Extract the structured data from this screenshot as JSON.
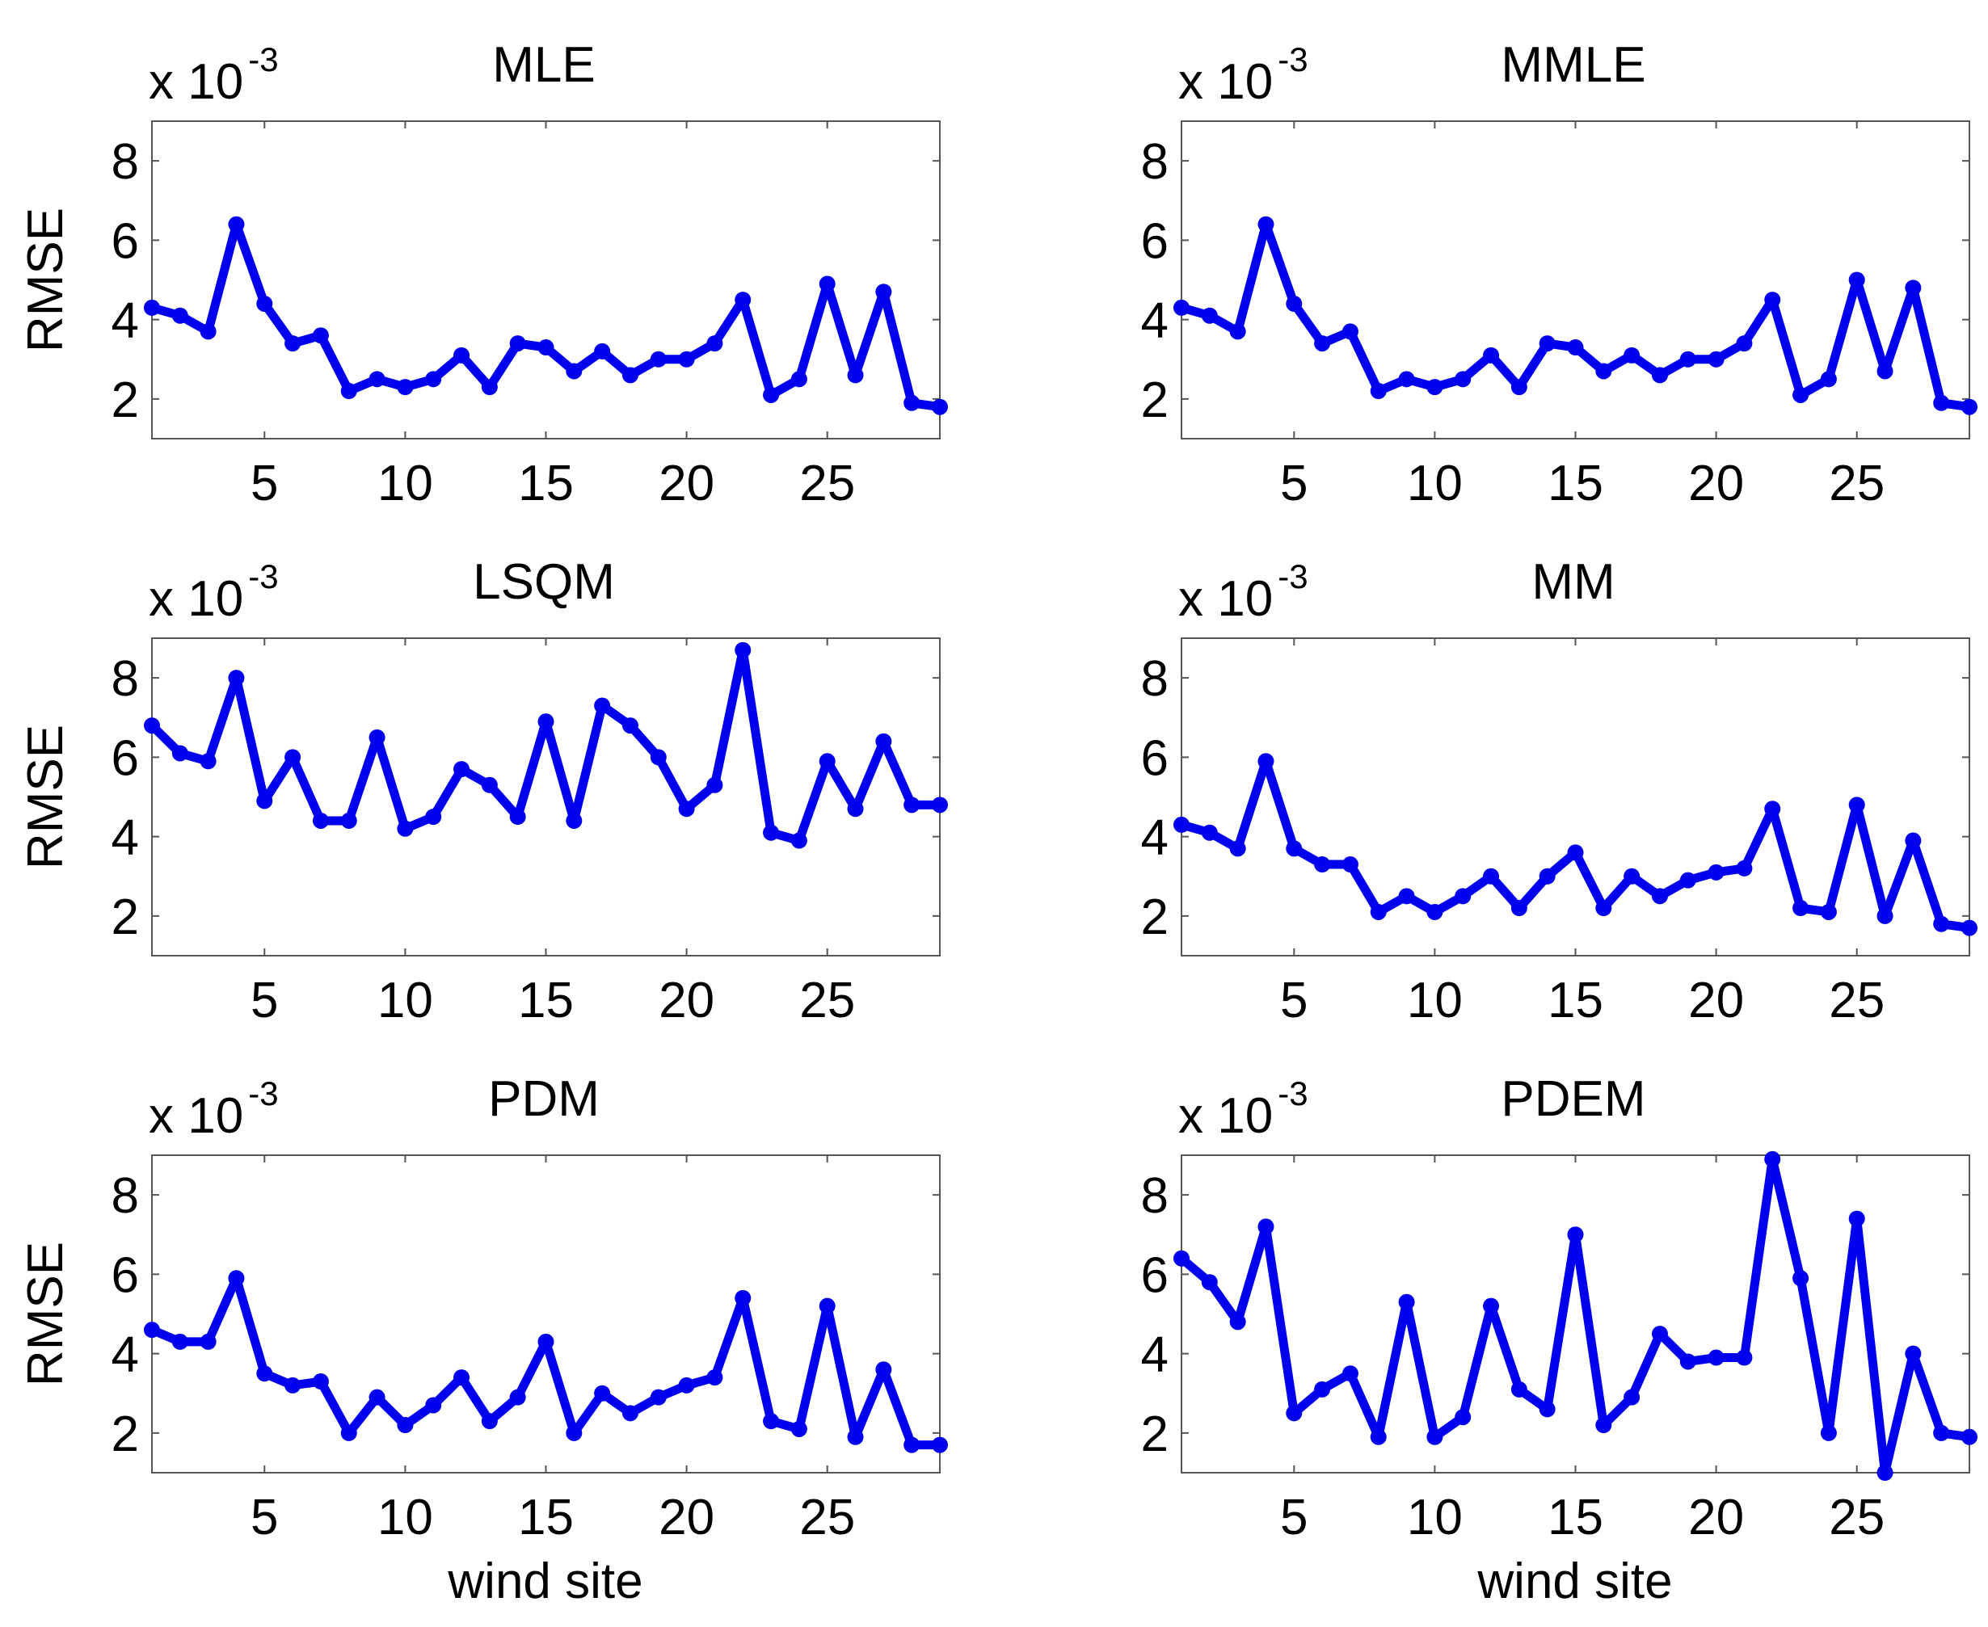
{
  "figure": {
    "background": "#ffffff",
    "line_color": "#0000ee"
  },
  "chart_data": [
    {
      "type": "line",
      "title": "MLE",
      "xlabel": "",
      "ylabel": "RMSE",
      "exponent_base": "x 10",
      "exponent_power": "-3",
      "xlim": [
        1,
        29
      ],
      "ylim": [
        1,
        9
      ],
      "xticks": [
        5,
        10,
        15,
        20,
        25
      ],
      "yticks": [
        2,
        4,
        6,
        8
      ],
      "grid": false,
      "x": [
        1,
        2,
        3,
        4,
        5,
        6,
        7,
        8,
        9,
        10,
        11,
        12,
        13,
        14,
        15,
        16,
        17,
        18,
        19,
        20,
        21,
        22,
        23,
        24,
        25,
        26,
        27,
        28,
        29
      ],
      "series": [
        {
          "values": [
            4.3,
            4.1,
            3.7,
            6.4,
            4.4,
            3.4,
            3.6,
            2.2,
            2.5,
            2.3,
            2.5,
            3.1,
            2.3,
            3.4,
            3.3,
            2.7,
            3.2,
            2.6,
            3.0,
            3.0,
            3.4,
            4.5,
            2.1,
            2.5,
            4.9,
            2.6,
            4.7,
            1.9,
            1.8
          ]
        }
      ]
    },
    {
      "type": "line",
      "title": "MMLE",
      "xlabel": "",
      "ylabel": "",
      "exponent_base": "x 10",
      "exponent_power": "-3",
      "xlim": [
        1,
        29
      ],
      "ylim": [
        1,
        9
      ],
      "xticks": [
        5,
        10,
        15,
        20,
        25
      ],
      "yticks": [
        2,
        4,
        6,
        8
      ],
      "grid": false,
      "x": [
        1,
        2,
        3,
        4,
        5,
        6,
        7,
        8,
        9,
        10,
        11,
        12,
        13,
        14,
        15,
        16,
        17,
        18,
        19,
        20,
        21,
        22,
        23,
        24,
        25,
        26,
        27,
        28,
        29
      ],
      "series": [
        {
          "values": [
            4.3,
            4.1,
            3.7,
            6.4,
            4.4,
            3.4,
            3.7,
            2.2,
            2.5,
            2.3,
            2.5,
            3.1,
            2.3,
            3.4,
            3.3,
            2.7,
            3.1,
            2.6,
            3.0,
            3.0,
            3.4,
            4.5,
            2.1,
            2.5,
            5.0,
            2.7,
            4.8,
            1.9,
            1.8
          ]
        }
      ]
    },
    {
      "type": "line",
      "title": "LSQM",
      "xlabel": "",
      "ylabel": "RMSE",
      "exponent_base": "x 10",
      "exponent_power": "-3",
      "xlim": [
        1,
        29
      ],
      "ylim": [
        1,
        9
      ],
      "xticks": [
        5,
        10,
        15,
        20,
        25
      ],
      "yticks": [
        2,
        4,
        6,
        8
      ],
      "grid": false,
      "x": [
        1,
        2,
        3,
        4,
        5,
        6,
        7,
        8,
        9,
        10,
        11,
        12,
        13,
        14,
        15,
        16,
        17,
        18,
        19,
        20,
        21,
        22,
        23,
        24,
        25,
        26,
        27,
        28,
        29
      ],
      "series": [
        {
          "values": [
            6.8,
            6.1,
            5.9,
            8.0,
            4.9,
            6.0,
            4.4,
            4.4,
            6.5,
            4.2,
            4.5,
            5.7,
            5.3,
            4.5,
            6.9,
            4.4,
            7.3,
            6.8,
            6.0,
            4.7,
            5.3,
            8.7,
            4.1,
            3.9,
            5.9,
            4.7,
            6.4,
            4.8,
            4.8
          ]
        }
      ]
    },
    {
      "type": "line",
      "title": "MM",
      "xlabel": "",
      "ylabel": "",
      "exponent_base": "x 10",
      "exponent_power": "-3",
      "xlim": [
        1,
        29
      ],
      "ylim": [
        1,
        9
      ],
      "xticks": [
        5,
        10,
        15,
        20,
        25
      ],
      "yticks": [
        2,
        4,
        6,
        8
      ],
      "grid": false,
      "x": [
        1,
        2,
        3,
        4,
        5,
        6,
        7,
        8,
        9,
        10,
        11,
        12,
        13,
        14,
        15,
        16,
        17,
        18,
        19,
        20,
        21,
        22,
        23,
        24,
        25,
        26,
        27,
        28,
        29
      ],
      "series": [
        {
          "values": [
            4.3,
            4.1,
            3.7,
            5.9,
            3.7,
            3.3,
            3.3,
            2.1,
            2.5,
            2.1,
            2.5,
            3.0,
            2.2,
            3.0,
            3.6,
            2.2,
            3.0,
            2.5,
            2.9,
            3.1,
            3.2,
            4.7,
            2.2,
            2.1,
            4.8,
            2.0,
            3.9,
            1.8,
            1.7
          ]
        }
      ]
    },
    {
      "type": "line",
      "title": "PDM",
      "xlabel": "wind site",
      "ylabel": "RMSE",
      "exponent_base": "x 10",
      "exponent_power": "-3",
      "xlim": [
        1,
        29
      ],
      "ylim": [
        1,
        9
      ],
      "xticks": [
        5,
        10,
        15,
        20,
        25
      ],
      "yticks": [
        2,
        4,
        6,
        8
      ],
      "grid": false,
      "x": [
        1,
        2,
        3,
        4,
        5,
        6,
        7,
        8,
        9,
        10,
        11,
        12,
        13,
        14,
        15,
        16,
        17,
        18,
        19,
        20,
        21,
        22,
        23,
        24,
        25,
        26,
        27,
        28,
        29
      ],
      "series": [
        {
          "values": [
            4.6,
            4.3,
            4.3,
            5.9,
            3.5,
            3.2,
            3.3,
            2.0,
            2.9,
            2.2,
            2.7,
            3.4,
            2.3,
            2.9,
            4.3,
            2.0,
            3.0,
            2.5,
            2.9,
            3.2,
            3.4,
            5.4,
            2.3,
            2.1,
            5.2,
            1.9,
            3.6,
            1.7,
            1.7
          ]
        }
      ]
    },
    {
      "type": "line",
      "title": "PDEM",
      "xlabel": "wind site",
      "ylabel": "",
      "exponent_base": "x 10",
      "exponent_power": "-3",
      "xlim": [
        1,
        29
      ],
      "ylim": [
        1,
        9
      ],
      "xticks": [
        5,
        10,
        15,
        20,
        25
      ],
      "yticks": [
        2,
        4,
        6,
        8
      ],
      "grid": false,
      "x": [
        1,
        2,
        3,
        4,
        5,
        6,
        7,
        8,
        9,
        10,
        11,
        12,
        13,
        14,
        15,
        16,
        17,
        18,
        19,
        20,
        21,
        22,
        23,
        24,
        25,
        26,
        27,
        28,
        29
      ],
      "series": [
        {
          "values": [
            6.4,
            5.8,
            4.8,
            7.2,
            2.5,
            3.1,
            3.5,
            1.9,
            5.3,
            1.9,
            2.4,
            5.2,
            3.1,
            2.6,
            7.0,
            2.2,
            2.9,
            4.5,
            3.8,
            3.9,
            3.9,
            8.9,
            5.9,
            2.0,
            7.4,
            1.0,
            4.0,
            2.0,
            1.9
          ]
        }
      ]
    }
  ]
}
